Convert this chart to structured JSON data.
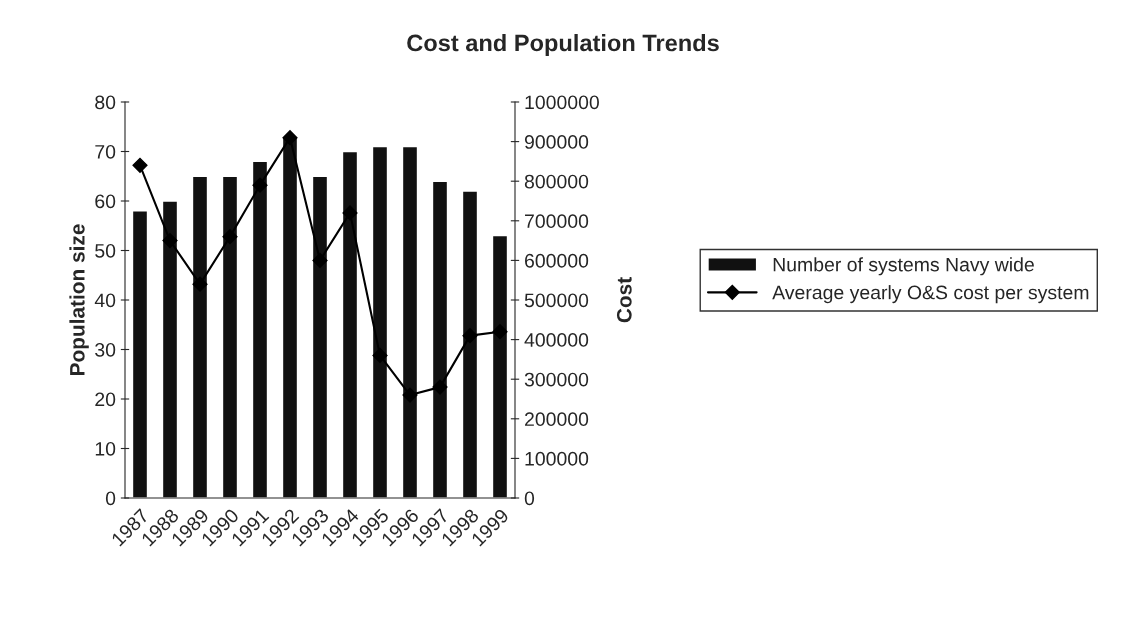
{
  "chart_data": {
    "type": "bar",
    "title": "Cost and Population Trends",
    "ylabel": "Population size",
    "y2label": "Cost",
    "categories": [
      "1987",
      "1988",
      "1989",
      "1990",
      "1991",
      "1992",
      "1993",
      "1994",
      "1995",
      "1996",
      "1997",
      "1998",
      "1999"
    ],
    "series": [
      {
        "name": "Number of systems Navy wide",
        "color": "#111111",
        "values": [
          58,
          60,
          65,
          65,
          68,
          73,
          65,
          70,
          71,
          71,
          64,
          62,
          53
        ]
      },
      {
        "name": "Average yearly O&S cost per system",
        "type": "line",
        "axis": "y2",
        "color": "#000000",
        "marker": "diamond",
        "values": [
          840000,
          650000,
          540000,
          660000,
          790000,
          910000,
          600000,
          720000,
          360000,
          260000,
          280000,
          410000,
          420000
        ]
      }
    ],
    "ylim": [
      0,
      80
    ],
    "yticks": [
      0,
      10,
      20,
      30,
      40,
      50,
      60,
      70,
      80
    ],
    "y2lim": [
      0,
      1000000
    ],
    "y2ticks": [
      0,
      100000,
      200000,
      300000,
      400000,
      500000,
      600000,
      700000,
      800000,
      900000,
      1000000
    ],
    "grid": false,
    "legend": "right"
  }
}
